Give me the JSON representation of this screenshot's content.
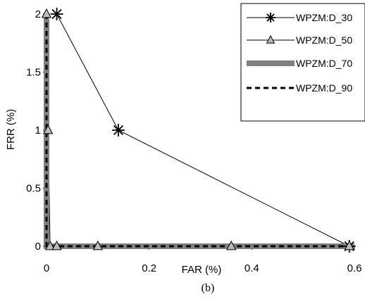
{
  "chart_data": {
    "type": "line",
    "title": "",
    "xlabel": "FAR (%)",
    "ylabel": "FRR (%)",
    "caption": "(b)",
    "xlim": [
      0,
      0.6
    ],
    "ylim": [
      0,
      2
    ],
    "x_ticks": [
      "0",
      "0.2",
      "0.4",
      "0.6"
    ],
    "y_ticks": [
      "0",
      "0.5",
      "1",
      "1.5",
      "2"
    ],
    "grid": false,
    "legend_position": "top-right",
    "series": [
      {
        "name": "WPZM:D_30",
        "marker": "asterisk",
        "line_style": "thin-solid",
        "color": "#000000",
        "points": [
          [
            0.02,
            2
          ],
          [
            0.14,
            1
          ],
          [
            0.59,
            0
          ]
        ]
      },
      {
        "name": "WPZM:D_50",
        "marker": "triangle",
        "line_style": "thin-solid",
        "color": "#000000",
        "marker_fill": "#bbbbbb",
        "points": [
          [
            0,
            2
          ],
          [
            0.003,
            1
          ],
          [
            0.007,
            0
          ],
          [
            0.02,
            0
          ],
          [
            0.1,
            0
          ],
          [
            0.36,
            0
          ],
          [
            0.59,
            0
          ]
        ]
      },
      {
        "name": "WPZM:D_70",
        "marker": "none",
        "line_style": "thick-solid",
        "color": "#808080",
        "points": [
          [
            0,
            2
          ],
          [
            0,
            0
          ],
          [
            0.6,
            0
          ]
        ]
      },
      {
        "name": "WPZM:D_90",
        "marker": "none",
        "line_style": "dashed",
        "color": "#000000",
        "points": [
          [
            0,
            2
          ],
          [
            0,
            0
          ],
          [
            0.6,
            0
          ]
        ]
      }
    ]
  }
}
